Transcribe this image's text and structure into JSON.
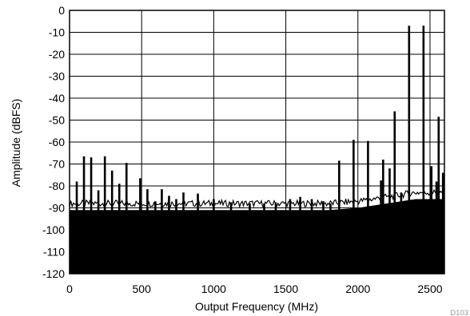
{
  "chart_data": {
    "type": "line",
    "xlabel": "Output Frequency (MHz)",
    "ylabel": "Amplitude (dBFS)",
    "xlim": [
      0,
      2600
    ],
    "ylim": [
      -120,
      0
    ],
    "x_ticks": [
      0,
      500,
      1000,
      1500,
      2000,
      2500
    ],
    "y_ticks": [
      0,
      -10,
      -20,
      -30,
      -40,
      -50,
      -60,
      -70,
      -80,
      -90,
      -100,
      -110,
      -120
    ],
    "grid": true,
    "noise_floor": [
      [
        0,
        -91
      ],
      [
        500,
        -91
      ],
      [
        1000,
        -91
      ],
      [
        1500,
        -91
      ],
      [
        1800,
        -91
      ],
      [
        2000,
        -90
      ],
      [
        2100,
        -89
      ],
      [
        2200,
        -88
      ],
      [
        2300,
        -87
      ],
      [
        2400,
        -86
      ],
      [
        2500,
        -86
      ],
      [
        2600,
        -86
      ]
    ],
    "spurs": [
      {
        "x": 50,
        "y": -78
      },
      {
        "x": 100,
        "y": -66.5
      },
      {
        "x": 150,
        "y": -67
      },
      {
        "x": 200,
        "y": -82
      },
      {
        "x": 245,
        "y": -66.5
      },
      {
        "x": 295,
        "y": -73
      },
      {
        "x": 345,
        "y": -79
      },
      {
        "x": 395,
        "y": -69.5
      },
      {
        "x": 490,
        "y": -76.5
      },
      {
        "x": 540,
        "y": -81.5
      },
      {
        "x": 595,
        "y": -87
      },
      {
        "x": 640,
        "y": -81.5
      },
      {
        "x": 690,
        "y": -84.5
      },
      {
        "x": 740,
        "y": -86
      },
      {
        "x": 790,
        "y": -83
      },
      {
        "x": 890,
        "y": -83.5
      },
      {
        "x": 1000,
        "y": -86
      },
      {
        "x": 1120,
        "y": -87.5
      },
      {
        "x": 1250,
        "y": -88
      },
      {
        "x": 1350,
        "y": -88
      },
      {
        "x": 1430,
        "y": -87.5
      },
      {
        "x": 1530,
        "y": -86
      },
      {
        "x": 1600,
        "y": -85
      },
      {
        "x": 1680,
        "y": -86
      },
      {
        "x": 1760,
        "y": -87
      },
      {
        "x": 1810,
        "y": -88
      },
      {
        "x": 1870,
        "y": -68.5
      },
      {
        "x": 1970,
        "y": -59
      },
      {
        "x": 2070,
        "y": -59.5
      },
      {
        "x": 2160,
        "y": -77.5
      },
      {
        "x": 2175,
        "y": -68
      },
      {
        "x": 2220,
        "y": -72
      },
      {
        "x": 2255,
        "y": -46
      },
      {
        "x": 2300,
        "y": -83
      },
      {
        "x": 2355,
        "y": -7
      },
      {
        "x": 2455,
        "y": -7
      },
      {
        "x": 2510,
        "y": -71
      },
      {
        "x": 2545,
        "y": -78
      },
      {
        "x": 2560,
        "y": -48.5
      },
      {
        "x": 2590,
        "y": -74
      }
    ]
  },
  "corner_label": "D103"
}
